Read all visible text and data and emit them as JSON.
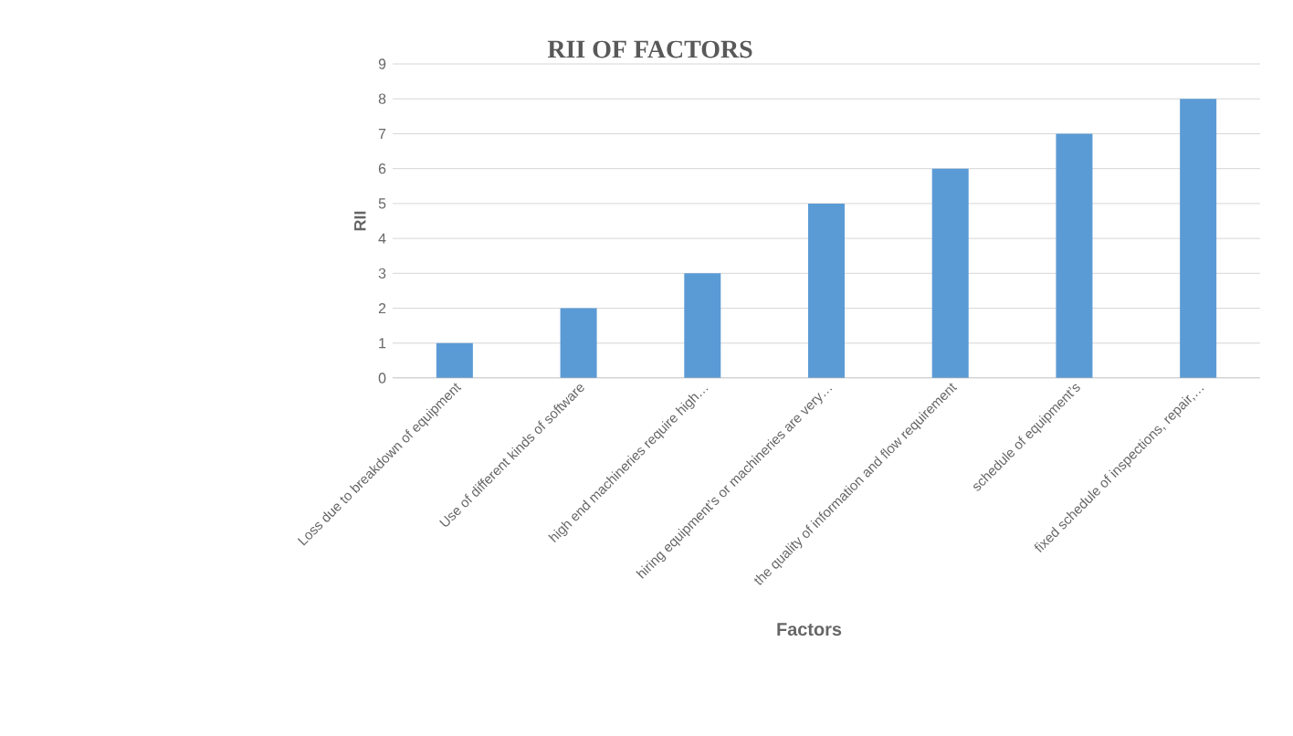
{
  "chart_data": {
    "type": "bar",
    "title": "RII OF FACTORS",
    "xlabel": "Factors",
    "ylabel": "RII",
    "categories": [
      "Loss due to breakdown of equipment",
      "Use of different kinds of software",
      "high end machineries require high…",
      "hiring equipment’s or machineries are very…",
      "the quality of information and flow requirement",
      "schedule of equipment’s",
      "fixed schedule of inspections, repair,…"
    ],
    "values": [
      1,
      2,
      3,
      5,
      6,
      7,
      8
    ],
    "color": "#5b9bd5",
    "ylim": [
      0,
      9
    ],
    "yticks": [
      0,
      1,
      2,
      3,
      4,
      5,
      6,
      7,
      8,
      9
    ],
    "grid": "y"
  }
}
